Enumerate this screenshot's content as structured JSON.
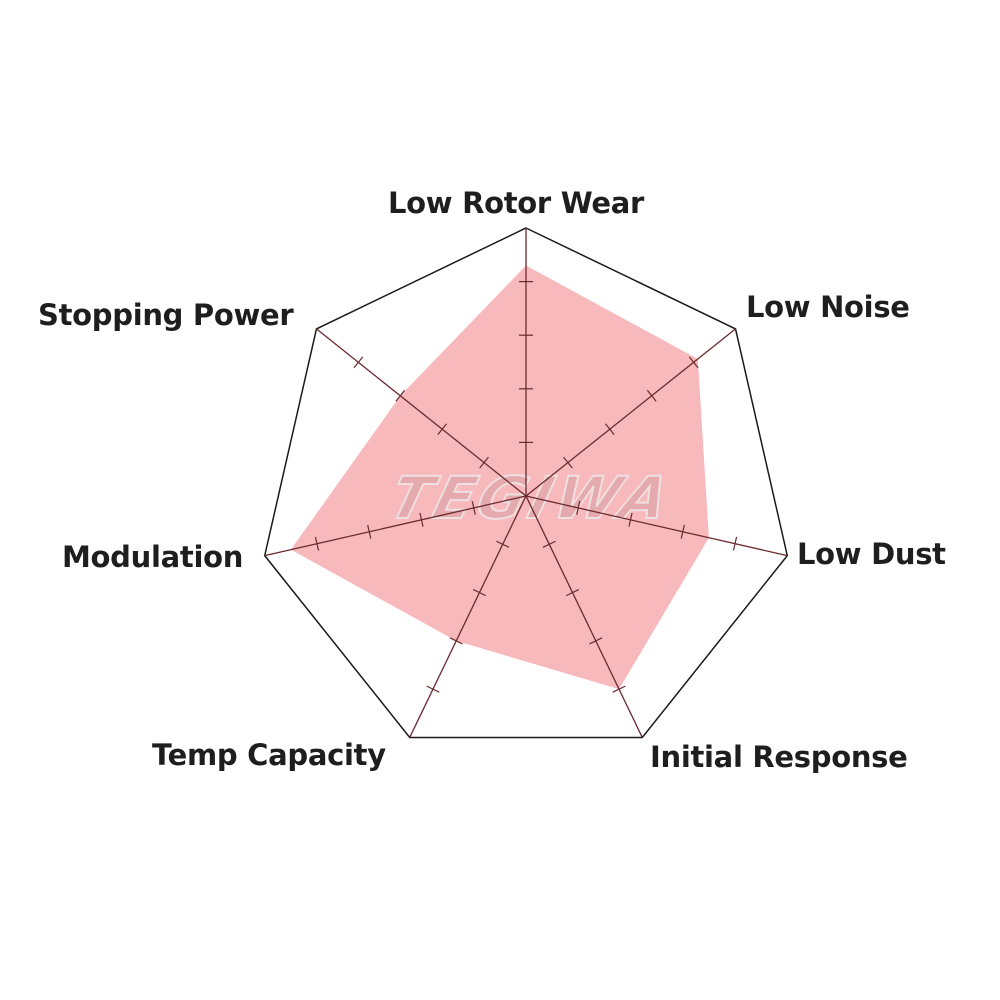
{
  "chart_data": {
    "type": "radar",
    "categories": [
      "Low Rotor Wear",
      "Low Noise",
      "Low Dust",
      "Initial Response",
      "Temp Capacity",
      "Modulation",
      "Stopping Power"
    ],
    "series": [
      {
        "values": [
          4.3,
          4.1,
          3.5,
          4.0,
          3.0,
          4.5,
          3.0
        ]
      }
    ],
    "rlim": [
      0,
      5
    ],
    "ticks": [
      1,
      2,
      3,
      4
    ],
    "grid": false,
    "fill_color": "#f8b9bc",
    "axis_color": "#6b2a2e",
    "frame_color": "#1a1a1a"
  },
  "watermark": "TEGIWA"
}
